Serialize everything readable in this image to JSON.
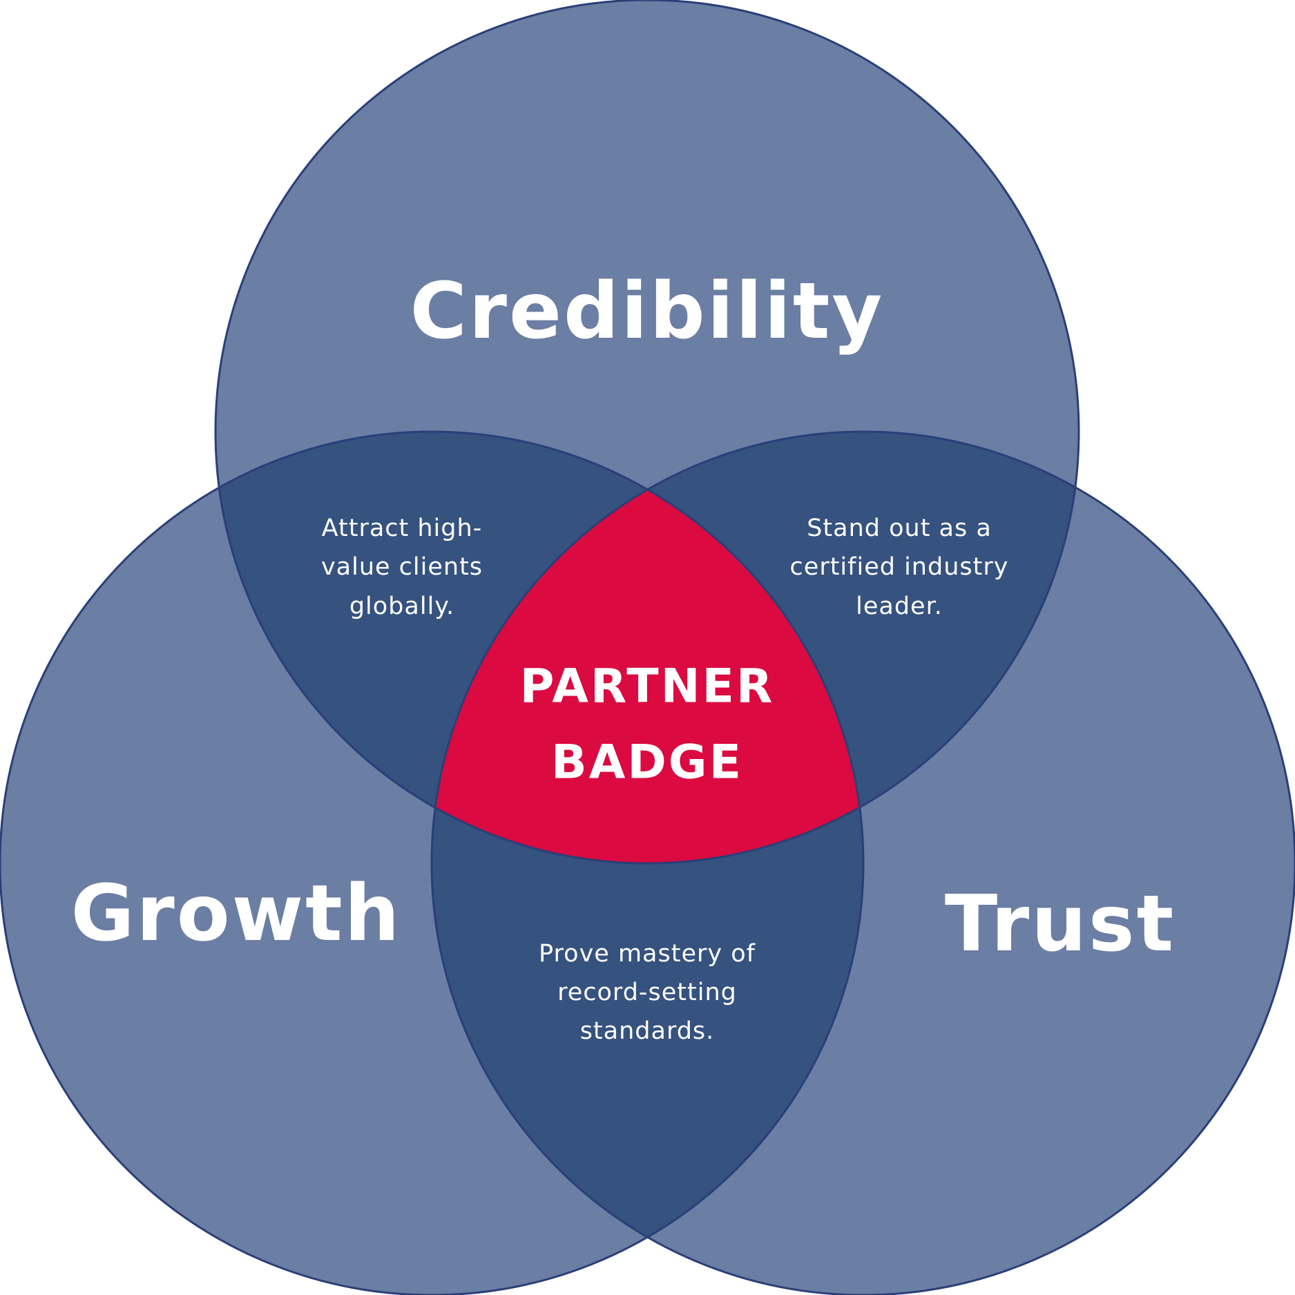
{
  "diagram": {
    "sets": {
      "credibility": "Credibility",
      "growth": "Growth",
      "trust": "Trust"
    },
    "intersections": {
      "credibility_growth": [
        "Attract high-",
        "value clients",
        "globally."
      ],
      "credibility_trust": [
        "Stand out as a",
        "certified industry",
        "leader."
      ],
      "growth_trust": [
        "Prove mastery of",
        "record-setting",
        "standards."
      ]
    },
    "center": [
      "PARTNER",
      "BADGE"
    ]
  },
  "colors": {
    "circle_fill": "#6b7ea3",
    "overlap_fill": "#36527f",
    "center_fill": "#db0a40",
    "stroke": "#2a3f78",
    "text": "#ffffff"
  }
}
